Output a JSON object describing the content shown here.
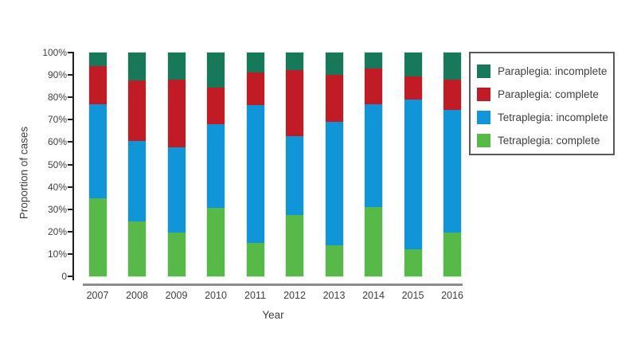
{
  "chart_data": {
    "type": "bar",
    "stacked": true,
    "title": "",
    "xlabel": "Year",
    "ylabel": "Proportion of cases",
    "ylim": [
      0,
      100
    ],
    "grid": false,
    "y_tick_labels": [
      "100%",
      "90%",
      "80%",
      "70%",
      "60%",
      "50%",
      "40%",
      "30%",
      "20%",
      "10%",
      "0"
    ],
    "categories": [
      "2007",
      "2008",
      "2009",
      "2010",
      "2011",
      "2012",
      "2013",
      "2014",
      "2015",
      "2016"
    ],
    "series": [
      {
        "name": "Tetraplegia: complete",
        "color": "#57b947",
        "values": [
          35,
          24.5,
          19.5,
          30.5,
          15,
          27.5,
          14,
          31,
          12,
          19.5
        ]
      },
      {
        "name": "Tetraplegia: incomplete",
        "color": "#1095d8",
        "values": [
          42,
          36,
          38,
          37.5,
          61.5,
          35,
          55,
          46,
          67,
          55
        ]
      },
      {
        "name": "Paraplegia: complete",
        "color": "#c11c25",
        "values": [
          17,
          27,
          30.5,
          16.5,
          14.5,
          29.5,
          21,
          16,
          10.5,
          13.5
        ]
      },
      {
        "name": "Paraplegia: incomplete",
        "color": "#17785a",
        "values": [
          6,
          12.5,
          12,
          15.5,
          9,
          8,
          10,
          7,
          10.5,
          12
        ]
      }
    ],
    "legend": {
      "position": "top-right",
      "items": [
        {
          "label": "Paraplegia: incomplete",
          "color": "#17785a"
        },
        {
          "label": "Paraplegia: complete",
          "color": "#c11c25"
        },
        {
          "label": "Tetraplegia: incomplete",
          "color": "#1095d8"
        },
        {
          "label": "Tetraplegia: complete",
          "color": "#57b947"
        }
      ]
    }
  },
  "colors": {
    "background": "#ffffff",
    "axis_line": "#231f20",
    "x_axis_line": "#8a8c8e",
    "text": "#414042",
    "legend_border": "#58595b"
  }
}
